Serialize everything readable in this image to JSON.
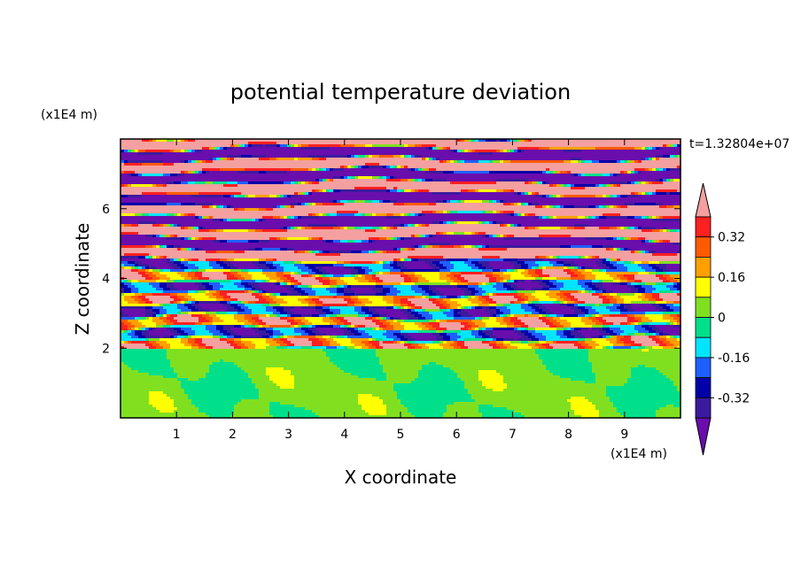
{
  "chart_data": {
    "type": "heatmap",
    "title": "potential temperature deviation",
    "xlabel": "X coordinate",
    "ylabel": "Z coordinate",
    "x_unit": "(x1E4 m)",
    "z_unit": "(x1E4 m)",
    "time_label": "t=1.32804e+07",
    "xlim": [
      0,
      10
    ],
    "ylim": [
      0,
      8
    ],
    "x_ticks": [
      "1",
      "2",
      "3",
      "4",
      "5",
      "6",
      "7",
      "8",
      "9"
    ],
    "y_ticks": [
      "2",
      "4",
      "6"
    ],
    "colorbar": {
      "levels": [
        -0.48,
        -0.4,
        -0.32,
        -0.24,
        -0.16,
        -0.08,
        0,
        0.08,
        0.16,
        0.24,
        0.32,
        0.4,
        0.48
      ],
      "tick_labels": [
        "0.32",
        "0.16",
        "0",
        "-0.16",
        "-0.32"
      ],
      "tick_values": [
        0.32,
        0.16,
        0,
        -0.16,
        -0.32
      ],
      "colors_low_to_high": [
        "#6a0dad",
        "#3c1a9e",
        "#0000a8",
        "#1f5fff",
        "#00e5ff",
        "#00e08a",
        "#80e020",
        "#ffff00",
        "#ffa000",
        "#ff5a00",
        "#ff2020",
        "#f4a0a0"
      ],
      "extend": "both"
    },
    "field_description_levels": {
      "lower_layer_z": [
        0,
        2
      ],
      "lower_layer_values": [
        0.0,
        0.05
      ],
      "upper_layer_z": [
        2,
        8
      ],
      "upper_layer_pattern": "alternating horizontal bands between -0.48 and 0.48"
    }
  }
}
